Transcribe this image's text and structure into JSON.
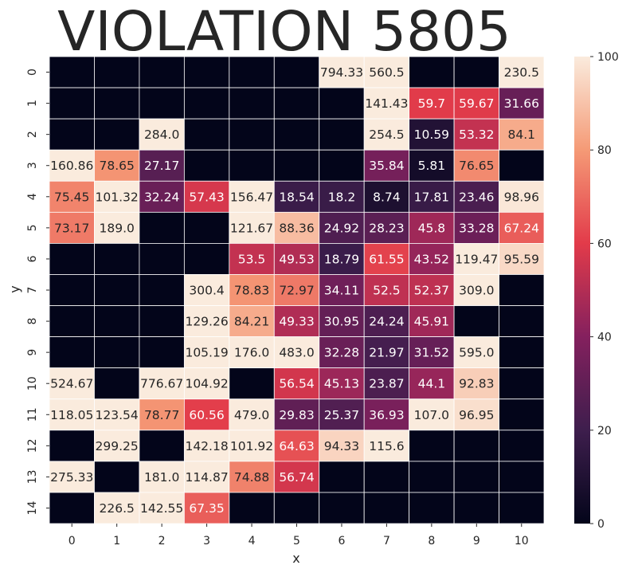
{
  "chart_data": {
    "type": "heatmap",
    "title": "VIOLATION 5805",
    "xlabel": "x",
    "ylabel": "y",
    "x_categories": [
      "0",
      "1",
      "2",
      "3",
      "4",
      "5",
      "6",
      "7",
      "8",
      "9",
      "10"
    ],
    "y_categories": [
      "0",
      "1",
      "2",
      "3",
      "4",
      "5",
      "6",
      "7",
      "8",
      "9",
      "10",
      "11",
      "12",
      "13",
      "14"
    ],
    "values": [
      [
        null,
        null,
        null,
        null,
        null,
        null,
        794.33,
        560.5,
        null,
        null,
        230.5
      ],
      [
        null,
        null,
        null,
        null,
        null,
        null,
        null,
        141.43,
        59.7,
        59.67,
        31.66
      ],
      [
        null,
        null,
        284.0,
        null,
        null,
        null,
        null,
        254.5,
        10.59,
        53.32,
        84.1
      ],
      [
        160.86,
        78.65,
        27.17,
        null,
        null,
        null,
        null,
        35.84,
        5.81,
        76.65,
        null
      ],
      [
        75.45,
        101.32,
        32.24,
        57.43,
        156.47,
        18.54,
        18.2,
        8.74,
        17.81,
        23.46,
        98.96
      ],
      [
        73.17,
        189.0,
        null,
        null,
        121.67,
        88.36,
        24.92,
        28.23,
        45.8,
        33.28,
        67.24
      ],
      [
        null,
        null,
        null,
        null,
        53.5,
        49.53,
        18.79,
        61.55,
        43.52,
        119.47,
        95.59
      ],
      [
        null,
        null,
        null,
        300.4,
        78.83,
        72.97,
        34.11,
        52.5,
        52.37,
        309.0,
        null
      ],
      [
        null,
        null,
        null,
        129.26,
        84.21,
        49.33,
        30.95,
        24.24,
        45.91,
        null,
        null
      ],
      [
        null,
        null,
        null,
        105.19,
        176.0,
        483.0,
        32.28,
        21.97,
        31.52,
        595.0,
        null
      ],
      [
        524.67,
        null,
        776.67,
        104.92,
        null,
        56.54,
        45.13,
        23.87,
        44.1,
        92.83,
        null
      ],
      [
        118.05,
        123.54,
        78.77,
        60.56,
        479.0,
        29.83,
        25.37,
        36.93,
        107.0,
        96.95,
        null
      ],
      [
        null,
        299.25,
        null,
        142.18,
        101.92,
        64.63,
        94.33,
        115.6,
        null,
        null,
        null
      ],
      [
        275.33,
        null,
        181.0,
        114.87,
        74.88,
        56.74,
        null,
        null,
        null,
        null,
        null
      ],
      [
        null,
        226.5,
        142.55,
        67.35,
        null,
        null,
        null,
        null,
        null,
        null,
        null
      ]
    ],
    "display_values": [
      [
        "",
        "",
        "",
        "",
        "",
        "",
        "794.33",
        "560.5",
        "",
        "",
        "230.5"
      ],
      [
        "",
        "",
        "",
        "",
        "",
        "",
        "",
        "141.43",
        "59.7",
        "59.67",
        "31.66"
      ],
      [
        "",
        "",
        "284.0",
        "",
        "",
        "",
        "",
        "254.5",
        "10.59",
        "53.32",
        "84.1"
      ],
      [
        "160.86",
        "78.65",
        "27.17",
        "",
        "",
        "",
        "",
        "35.84",
        "5.81",
        "76.65",
        ""
      ],
      [
        "75.45",
        "101.32",
        "32.24",
        "57.43",
        "156.47",
        "18.54",
        "18.2",
        "8.74",
        "17.81",
        "23.46",
        "98.96"
      ],
      [
        "73.17",
        "189.0",
        "",
        "",
        "121.67",
        "88.36",
        "24.92",
        "28.23",
        "45.8",
        "33.28",
        "67.24"
      ],
      [
        "",
        "",
        "",
        "",
        "53.5",
        "49.53",
        "18.79",
        "61.55",
        "43.52",
        "119.47",
        "95.59"
      ],
      [
        "",
        "",
        "",
        "300.4",
        "78.83",
        "72.97",
        "34.11",
        "52.5",
        "52.37",
        "309.0",
        ""
      ],
      [
        "",
        "",
        "",
        "129.26",
        "84.21",
        "49.33",
        "30.95",
        "24.24",
        "45.91",
        "",
        ""
      ],
      [
        "",
        "",
        "",
        "105.19",
        "176.0",
        "483.0",
        "32.28",
        "21.97",
        "31.52",
        "595.0",
        ""
      ],
      [
        "524.67",
        "",
        "776.67",
        "104.92",
        "",
        "56.54",
        "45.13",
        "23.87",
        "44.1",
        "92.83",
        ""
      ],
      [
        "118.05",
        "123.54",
        "78.77",
        "60.56",
        "479.0",
        "29.83",
        "25.37",
        "36.93",
        "107.0",
        "96.95",
        ""
      ],
      [
        "",
        "299.25",
        "",
        "142.18",
        "101.92",
        "64.63",
        "94.33",
        "115.6",
        "",
        "",
        ""
      ],
      [
        "275.33",
        "",
        "181.0",
        "114.87",
        "74.88",
        "56.74",
        "",
        "",
        "",
        "",
        ""
      ],
      [
        "",
        "226.5",
        "142.55",
        "67.35",
        "",
        "",
        "",
        "",
        "",
        "",
        ""
      ]
    ],
    "color_scale": {
      "vmin": 0,
      "vmax": 100,
      "ticks": [
        0,
        20,
        40,
        60,
        80,
        100
      ],
      "tick_labels": [
        "0",
        "20",
        "40",
        "60",
        "80",
        "100"
      ]
    },
    "grid": true,
    "legend": "colorbar-right"
  }
}
